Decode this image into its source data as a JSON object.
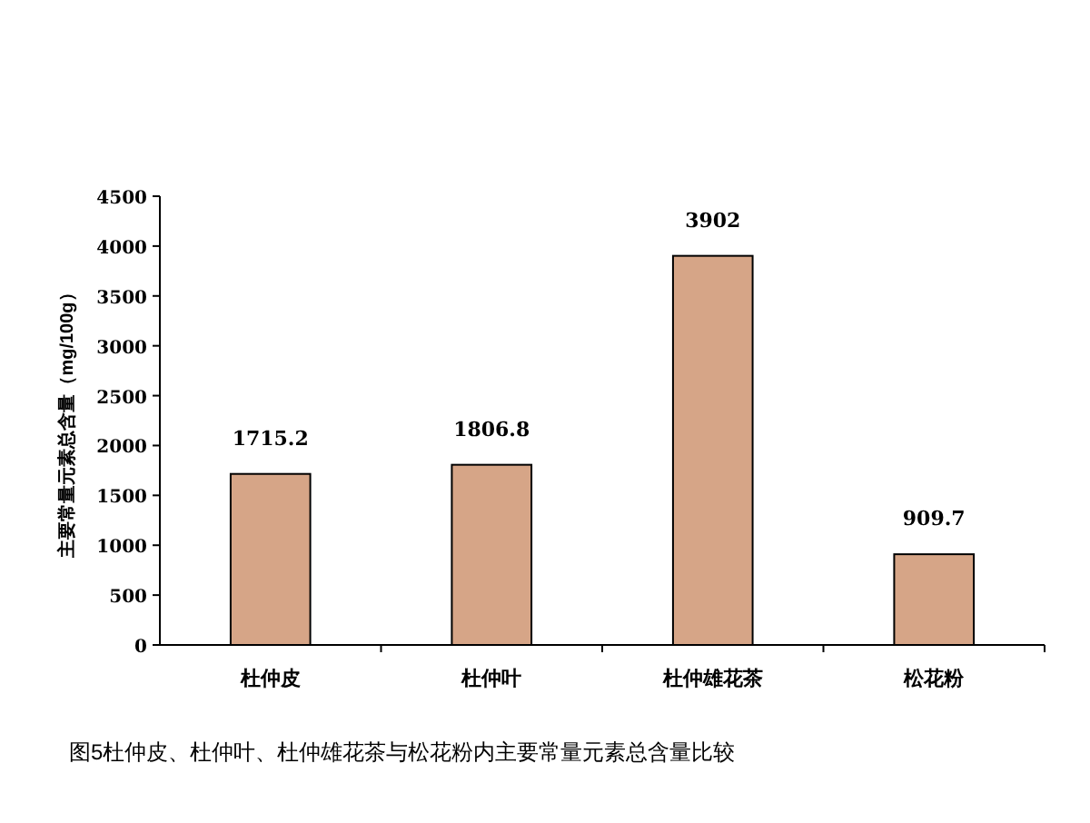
{
  "chart_data": {
    "type": "bar",
    "categories": [
      "杜仲皮",
      "杜仲叶",
      "杜仲雄花茶",
      "松花粉"
    ],
    "values": [
      1715.2,
      1806.8,
      3902,
      909.7
    ],
    "color": "#d6a587",
    "ylabel": "主要常量元素总含量（mg/100g）",
    "ylim": [
      0,
      4500
    ],
    "yticks": [
      0,
      500,
      1000,
      1500,
      2000,
      2500,
      3000,
      3500,
      4000,
      4500
    ],
    "data_labels": true,
    "annotations": [
      "图5杜仲皮、杜仲叶、杜仲雄花茶与松花粉内主要常量元素总含量比较"
    ]
  }
}
